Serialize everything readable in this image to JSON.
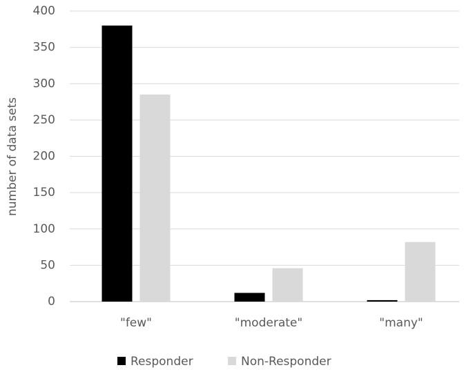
{
  "chart_data": {
    "type": "bar",
    "y_label": "number of data sets",
    "categories": [
      "\"few\"",
      "\"moderate\"",
      "\"many\""
    ],
    "series": [
      {
        "name": "Responder",
        "color": "#000000",
        "values": [
          380,
          12,
          2
        ]
      },
      {
        "name": "Non-Responder",
        "color": "#d9d9d9",
        "values": [
          285,
          46,
          82
        ]
      }
    ],
    "ylim": [
      0,
      400
    ],
    "yticks": [
      0,
      50,
      100,
      150,
      200,
      250,
      300,
      350,
      400
    ],
    "grid": true,
    "legend": "bottom"
  }
}
